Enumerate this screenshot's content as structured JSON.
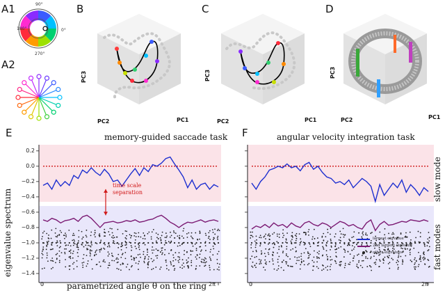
{
  "panels": {
    "A1": "A1",
    "A2": "A2",
    "B": "B",
    "C": "C",
    "D": "D",
    "E": "E",
    "F": "F"
  },
  "ring_degrees": {
    "d90": "90°",
    "d180": "180°",
    "d0": "0°",
    "d270": "270°"
  },
  "pc_labels": {
    "pc1": "PC1",
    "pc2": "PC2",
    "pc3": "PC3"
  },
  "captions": {
    "e_title": "memory-guided saccade task",
    "f_title": "angular velocity integration task",
    "y_label": "eigenvalue spectrum",
    "x_label": "parametrized angle θ on the ring",
    "slow": "slow mode",
    "fast": "fast modes",
    "separation_1": "time scale",
    "separation_2": "separation"
  },
  "legend": {
    "largest": "largest eigvalue",
    "second": "2nd largest eigvalue",
    "other": "other eigvalues"
  },
  "colors": {
    "slow_band": "#fbe3e8",
    "fast_band": "#e9e7fb",
    "largest": "#1d2fd0",
    "second": "#7b1a73",
    "other": "#222222",
    "reference": "#d01818"
  },
  "chart_data": {
    "type": "line",
    "yticks": [
      "0.2",
      "0.0",
      "−0.2",
      "−0.4",
      "−0.6",
      "−0.8",
      "−1.0",
      "−1.2",
      "−1.4"
    ],
    "ytick_values": [
      0.2,
      0.0,
      -0.2,
      -0.4,
      -0.6,
      -0.8,
      -1.0,
      -1.2,
      -1.4
    ],
    "xticks_E": [
      "0",
      "2π"
    ],
    "xticks_F": [
      "0",
      "2π"
    ],
    "ylim": [
      -1.5,
      0.28
    ],
    "reference_line": 0.0,
    "E": {
      "largest": [
        -0.25,
        -0.22,
        -0.3,
        -0.18,
        -0.26,
        -0.2,
        -0.25,
        -0.12,
        -0.16,
        -0.05,
        -0.09,
        -0.02,
        -0.08,
        -0.12,
        -0.04,
        -0.1,
        -0.2,
        -0.18,
        -0.26,
        -0.18,
        -0.1,
        -0.03,
        -0.12,
        -0.02,
        -0.07,
        0.02,
        0.0,
        0.04,
        0.1,
        0.12,
        0.03,
        -0.05,
        -0.14,
        -0.28,
        -0.18,
        -0.3,
        -0.24,
        -0.22,
        -0.3,
        -0.24,
        -0.27
      ],
      "second": [
        -0.7,
        -0.72,
        -0.68,
        -0.7,
        -0.74,
        -0.71,
        -0.7,
        -0.68,
        -0.72,
        -0.66,
        -0.64,
        -0.68,
        -0.74,
        -0.8,
        -0.74,
        -0.73,
        -0.72,
        -0.74,
        -0.73,
        -0.71,
        -0.72,
        -0.7,
        -0.73,
        -0.72,
        -0.7,
        -0.69,
        -0.66,
        -0.64,
        -0.68,
        -0.73,
        -0.76,
        -0.8,
        -0.76,
        -0.73,
        -0.74,
        -0.72,
        -0.7,
        -0.73,
        -0.71,
        -0.7,
        -0.72
      ]
    },
    "F": {
      "largest": [
        -0.22,
        -0.3,
        -0.2,
        -0.14,
        -0.05,
        -0.03,
        0.0,
        -0.02,
        0.03,
        -0.02,
        0.0,
        -0.06,
        0.02,
        0.05,
        -0.04,
        0.0,
        -0.08,
        -0.14,
        -0.16,
        -0.22,
        -0.2,
        -0.24,
        -0.18,
        -0.28,
        -0.22,
        -0.16,
        -0.2,
        -0.26,
        -0.46,
        -0.24,
        -0.38,
        -0.3,
        -0.22,
        -0.28,
        -0.18,
        -0.34,
        -0.24,
        -0.3,
        -0.38,
        -0.28,
        -0.33
      ],
      "second": [
        -0.82,
        -0.78,
        -0.8,
        -0.76,
        -0.8,
        -0.74,
        -0.78,
        -0.76,
        -0.8,
        -0.74,
        -0.78,
        -0.8,
        -0.74,
        -0.72,
        -0.76,
        -0.78,
        -0.74,
        -0.76,
        -0.8,
        -0.76,
        -0.72,
        -0.74,
        -0.78,
        -0.76,
        -0.8,
        -0.82,
        -0.74,
        -0.7,
        -0.84,
        -0.76,
        -0.72,
        -0.77,
        -0.76,
        -0.74,
        -0.72,
        -0.73,
        -0.7,
        -0.71,
        -0.72,
        -0.7,
        -0.72
      ]
    }
  }
}
